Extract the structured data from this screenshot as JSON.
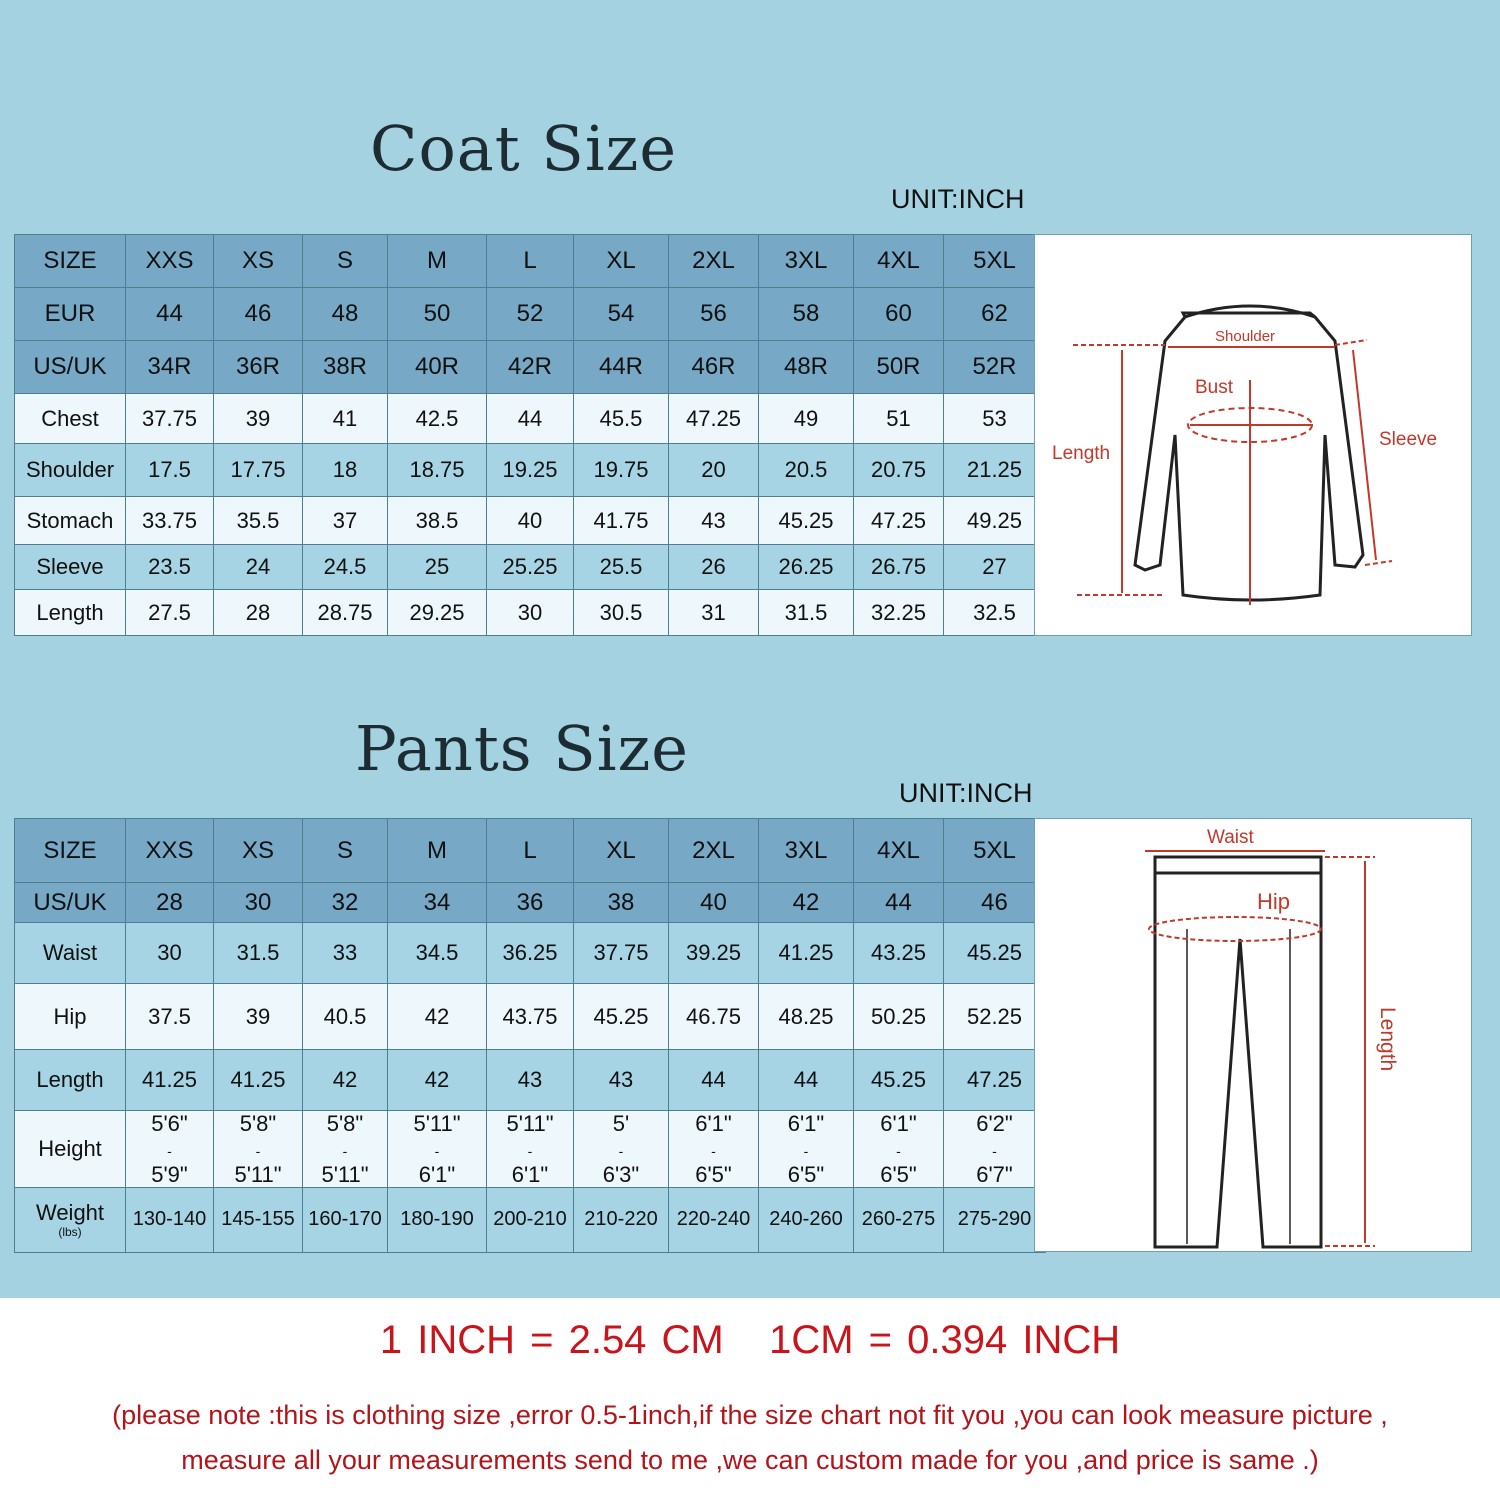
{
  "coat": {
    "title": "Coat Size",
    "unit": "UNIT:INCH",
    "header_rows": [
      [
        "SIZE",
        "XXS",
        "XS",
        "S",
        "M",
        "L",
        "XL",
        "2XL",
        "3XL",
        "4XL",
        "5XL"
      ],
      [
        "EUR",
        "44",
        "46",
        "48",
        "50",
        "52",
        "54",
        "56",
        "58",
        "60",
        "62"
      ],
      [
        "US/UK",
        "34R",
        "36R",
        "38R",
        "40R",
        "42R",
        "44R",
        "46R",
        "48R",
        "50R",
        "52R"
      ]
    ],
    "rows": [
      [
        "Chest",
        "37.75",
        "39",
        "41",
        "42.5",
        "44",
        "45.5",
        "47.25",
        "49",
        "51",
        "53"
      ],
      [
        "Shoulder",
        "17.5",
        "17.75",
        "18",
        "18.75",
        "19.25",
        "19.75",
        "20",
        "20.5",
        "20.75",
        "21.25"
      ],
      [
        "Stomach",
        "33.75",
        "35.5",
        "37",
        "38.5",
        "40",
        "41.75",
        "43",
        "45.25",
        "47.25",
        "49.25"
      ],
      [
        "Sleeve",
        "23.5",
        "24",
        "24.5",
        "25",
        "25.25",
        "25.5",
        "26",
        "26.25",
        "26.75",
        "27"
      ],
      [
        "Length",
        "27.5",
        "28",
        "28.75",
        "29.25",
        "30",
        "30.5",
        "31",
        "31.5",
        "32.25",
        "32.5"
      ]
    ],
    "diagram_labels": {
      "shoulder": "Shoulder",
      "bust": "Bust",
      "length": "Length",
      "sleeve": "Sleeve"
    }
  },
  "pants": {
    "title": "Pants Size",
    "unit": "UNIT:INCH",
    "header_rows": [
      [
        "SIZE",
        "XXS",
        "XS",
        "S",
        "M",
        "L",
        "XL",
        "2XL",
        "3XL",
        "4XL",
        "5XL"
      ],
      [
        "US/UK",
        "28",
        "30",
        "32",
        "34",
        "36",
        "38",
        "40",
        "42",
        "44",
        "46"
      ]
    ],
    "rows": [
      [
        "Waist",
        "30",
        "31.5",
        "33",
        "34.5",
        "36.25",
        "37.75",
        "39.25",
        "41.25",
        "43.25",
        "45.25"
      ],
      [
        "Hip",
        "37.5",
        "39",
        "40.5",
        "42",
        "43.75",
        "45.25",
        "46.75",
        "48.25",
        "50.25",
        "52.25"
      ],
      [
        "Length",
        "41.25",
        "41.25",
        "42",
        "42",
        "43",
        "43",
        "44",
        "44",
        "45.25",
        "47.25"
      ]
    ],
    "height": {
      "label": "Height",
      "values": [
        [
          "5'6\"",
          "5'9\""
        ],
        [
          "5'8\"",
          "5'11\""
        ],
        [
          "5'8\"",
          "5'11\""
        ],
        [
          "5'11\"",
          "6'1\""
        ],
        [
          "5'11\"",
          "6'1\""
        ],
        [
          "5'",
          "6'3\""
        ],
        [
          "6'1\"",
          "6'5\""
        ],
        [
          "6'1\"",
          "6'5\""
        ],
        [
          "6'1\"",
          "6'5\""
        ],
        [
          "6'2\"",
          "6'7\""
        ]
      ]
    },
    "weight": {
      "label": "Weight",
      "unit": "(lbs)",
      "values": [
        "130-140",
        "145-155",
        "160-170",
        "180-190",
        "200-210",
        "210-220",
        "220-240",
        "240-260",
        "260-275",
        "275-290"
      ]
    },
    "diagram_labels": {
      "waist": "Waist",
      "hip": "Hip",
      "length": "Length"
    }
  },
  "footer": {
    "conversion": "1 INCH = 2.54 CM   1CM = 0.394 INCH",
    "note_line1": "(please note :this is clothing size ,error 0.5-1inch,if the size chart not fit you ,you can look measure picture ,",
    "note_line2": "measure all your measurements send to me ,we can custom made for you ,and price is same .)"
  },
  "colors": {
    "background": "#a5d2e1",
    "header": "#77a9c7",
    "row_light": "#eef7fb",
    "row_blue": "#a6d4e4",
    "accent_red": "#c8141a"
  }
}
